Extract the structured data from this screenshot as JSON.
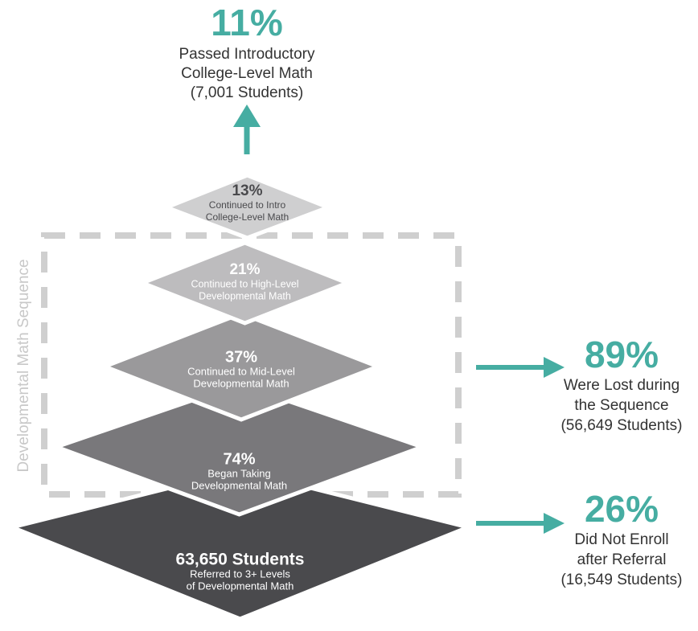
{
  "outcome": {
    "percent": "11%",
    "lines": [
      "Passed Introductory",
      "College-Level Math",
      "(7,001 Students)"
    ]
  },
  "sequence_label": "Developmental Math Sequence",
  "layers": [
    {
      "percent": "13%",
      "lines": [
        "Continued to Intro",
        "College-Level Math"
      ]
    },
    {
      "percent": "21%",
      "lines": [
        "Continued to High-Level",
        "Developmental Math"
      ]
    },
    {
      "percent": "37%",
      "lines": [
        "Continued to Mid-Level",
        "Developmental Math"
      ]
    },
    {
      "percent": "74%",
      "lines": [
        "Began Taking",
        "Developmental Math"
      ]
    },
    {
      "percent": "63,650 Students",
      "lines": [
        "Referred to 3+ Levels",
        "of Developmental Math"
      ]
    }
  ],
  "callouts": [
    {
      "percent": "89%",
      "lines": [
        "Were Lost during",
        "the Sequence",
        "(56,649 Students)"
      ]
    },
    {
      "percent": "26%",
      "lines": [
        "Did Not Enroll",
        "after Referral",
        "(16,549 Students)"
      ]
    }
  ]
}
